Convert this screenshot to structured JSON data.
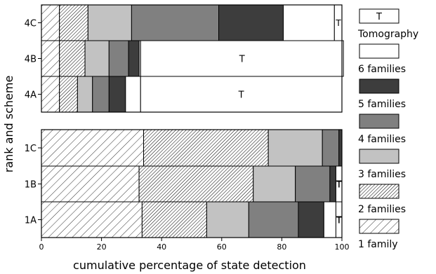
{
  "chart_data": [
    {
      "type": "bar",
      "orientation": "horizontal",
      "stacked": true,
      "panel": "top",
      "categories": [
        "4C",
        "4B",
        "4A"
      ],
      "series": [
        {
          "name": "1 family",
          "values": [
            6,
            6,
            6
          ]
        },
        {
          "name": "2 families",
          "values": [
            9.5,
            8.5,
            6
          ]
        },
        {
          "name": "3 families",
          "values": [
            14.5,
            8,
            5
          ]
        },
        {
          "name": "4 families",
          "values": [
            29,
            6.5,
            5.5
          ]
        },
        {
          "name": "5 families",
          "values": [
            21.5,
            3.5,
            5.5
          ]
        },
        {
          "name": "6 families",
          "values": [
            17,
            0.5,
            5
          ]
        },
        {
          "name": "Tomography",
          "values": [
            2.5,
            67.5,
            67
          ]
        }
      ],
      "segment_labels": [
        "",
        "T",
        "T"
      ],
      "xlim": [
        0,
        100
      ],
      "ylabel": "rank and scheme"
    },
    {
      "type": "bar",
      "orientation": "horizontal",
      "stacked": true,
      "panel": "bottom",
      "categories": [
        "1C",
        "1B",
        "1A"
      ],
      "series": [
        {
          "name": "1 family",
          "values": [
            34,
            32.5,
            33.5
          ]
        },
        {
          "name": "2 families",
          "values": [
            41.5,
            38,
            21.5
          ]
        },
        {
          "name": "3 families",
          "values": [
            18,
            14,
            14
          ]
        },
        {
          "name": "4 families",
          "values": [
            5.5,
            11.5,
            16.5
          ]
        },
        {
          "name": "5 families",
          "values": [
            1,
            2,
            8.5
          ]
        },
        {
          "name": "6 families",
          "values": [
            0,
            0,
            4
          ]
        },
        {
          "name": "Tomography",
          "values": [
            0,
            2,
            2
          ]
        }
      ],
      "segment_labels": [
        "",
        "T",
        "T"
      ],
      "xlim": [
        0,
        100
      ],
      "xticks": [
        0,
        20,
        40,
        60,
        80,
        100
      ],
      "xlabel": "cumulative percentage of state detection",
      "ylabel": "rank and scheme"
    }
  ],
  "legend": {
    "placement": "right",
    "items": [
      {
        "label": "Tomography",
        "swatch_text": "T",
        "style": "white"
      },
      {
        "label": "6 families",
        "style": "white"
      },
      {
        "label": "5 families",
        "style": "#3d3d3d"
      },
      {
        "label": "4 families",
        "style": "#808080"
      },
      {
        "label": "3 families",
        "style": "#c2c2c2"
      },
      {
        "label": "2 families",
        "style": "dense-hatch"
      },
      {
        "label": "1 family",
        "style": "sparse-hatch"
      }
    ]
  },
  "series_styles": [
    "sparse-hatch",
    "dense-hatch",
    "#c2c2c2",
    "#808080",
    "#3d3d3d",
    "#ffffff",
    "#ffffff"
  ]
}
